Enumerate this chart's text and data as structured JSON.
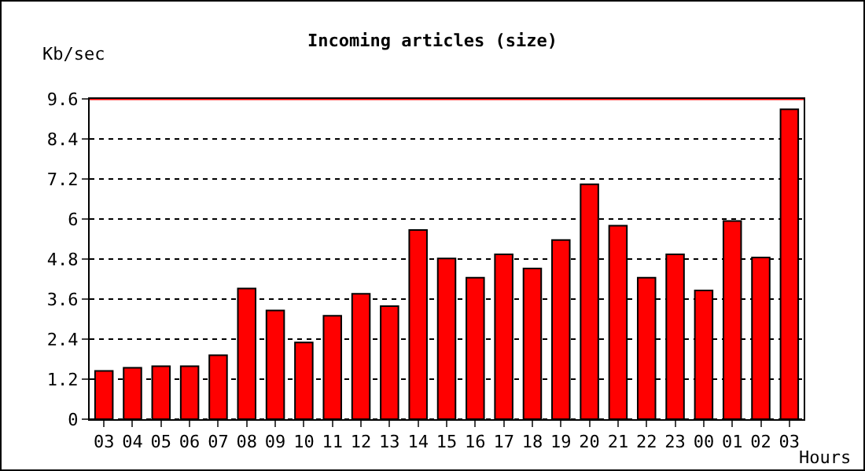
{
  "chart_data": {
    "type": "bar",
    "title": "Incoming articles (size)",
    "ylabel": "Kb/sec",
    "xlabel": "Hours",
    "categories": [
      "03",
      "04",
      "05",
      "06",
      "07",
      "08",
      "09",
      "10",
      "11",
      "12",
      "13",
      "14",
      "15",
      "16",
      "17",
      "18",
      "19",
      "20",
      "21",
      "22",
      "23",
      "00",
      "01",
      "02",
      "03"
    ],
    "values": [
      1.45,
      1.54,
      1.59,
      1.59,
      1.92,
      3.92,
      3.26,
      2.3,
      3.1,
      3.76,
      3.39,
      5.67,
      4.82,
      4.24,
      4.94,
      4.52,
      5.37,
      7.04,
      5.8,
      4.24,
      4.94,
      3.86,
      5.94,
      4.85,
      9.29
    ],
    "color": "#ff0000",
    "ylim": [
      0,
      9.6
    ],
    "yticks": [
      0,
      1.2,
      2.4,
      3.6,
      4.8,
      6,
      7.2,
      8.4,
      9.6
    ],
    "grid": "y",
    "line_style": "dotted",
    "ref_lines": [
      {
        "axis": "y",
        "value": 9.6,
        "color": "#ff0000"
      }
    ]
  }
}
